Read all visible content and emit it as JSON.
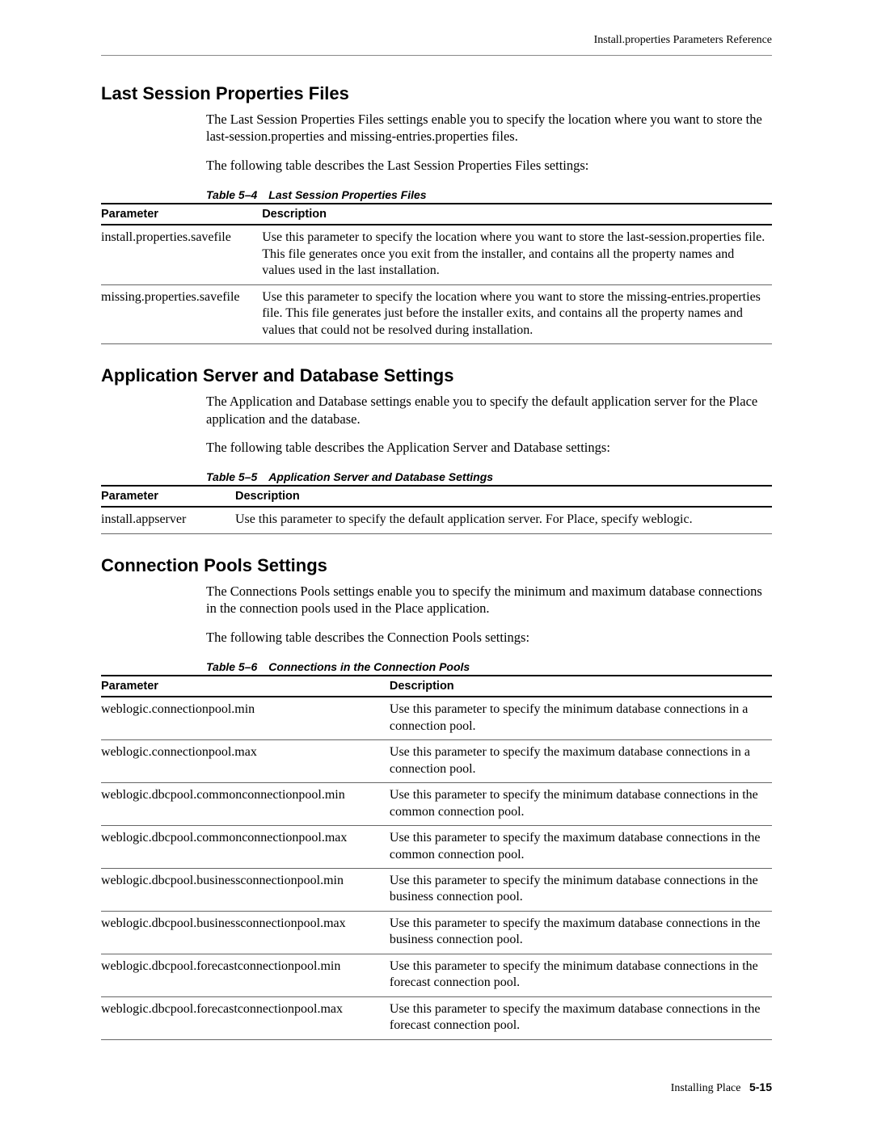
{
  "header": {
    "right_text": "Install.properties Parameters Reference"
  },
  "sections": {
    "last_session": {
      "heading": "Last Session Properties Files",
      "para1": "The Last Session Properties Files settings enable you to specify the location where you want to store the last-session.properties and missing-entries.properties files.",
      "para2": "The following table describes the Last Session Properties Files settings:",
      "table_caption": "Table 5–4 Last Session Properties Files",
      "columns": {
        "param": "Parameter",
        "desc": "Description"
      },
      "rows": [
        {
          "param": "install.properties.savefile",
          "desc": "Use this parameter to specify the location where you want to store the last-session.properties file. This file generates once you exit from the installer, and contains all the property names and values used in the last installation."
        },
        {
          "param": "missing.properties.savefile",
          "desc": "Use this parameter to specify the location where you want to store the missing-entries.properties file. This file generates just before the installer exits, and contains all the property names and values that could not be resolved during installation."
        }
      ]
    },
    "app_server": {
      "heading": "Application Server and Database Settings",
      "para1": "The Application and Database settings enable you to specify the default application server for the Place application and the database.",
      "para2": "The following table describes the Application Server and Database settings:",
      "table_caption": "Table 5–5 Application Server and Database Settings",
      "columns": {
        "param": "Parameter",
        "desc": "Description"
      },
      "rows": [
        {
          "param": "install.appserver",
          "desc": "Use this parameter to specify the default application server. For Place, specify weblogic."
        }
      ]
    },
    "conn_pools": {
      "heading": "Connection Pools Settings",
      "para1": "The Connections Pools settings enable you to specify the minimum and maximum database connections in the connection pools used in the Place application.",
      "para2": "The following table describes the Connection Pools settings:",
      "table_caption": "Table 5–6 Connections in the Connection Pools",
      "columns": {
        "param": "Parameter",
        "desc": "Description"
      },
      "rows": [
        {
          "param": "weblogic.connectionpool.min",
          "desc": "Use this parameter to specify the minimum database connections in a connection pool."
        },
        {
          "param": "weblogic.connectionpool.max",
          "desc": "Use this parameter to specify the maximum database connections in a connection pool."
        },
        {
          "param": "weblogic.dbcpool.commonconnectionpool.min",
          "desc": "Use this parameter to specify the minimum database connections in the common connection pool."
        },
        {
          "param": "weblogic.dbcpool.commonconnectionpool.max",
          "desc": "Use this parameter to specify the maximum database connections in the common connection pool."
        },
        {
          "param": "weblogic.dbcpool.businessconnectionpool.min",
          "desc": "Use this parameter to specify the minimum database connections in the business connection pool."
        },
        {
          "param": "weblogic.dbcpool.businessconnectionpool.max",
          "desc": "Use this parameter to specify the maximum database connections in the business connection pool."
        },
        {
          "param": "weblogic.dbcpool.forecastconnectionpool.min",
          "desc": "Use this parameter to specify the minimum database connections in the forecast connection pool."
        },
        {
          "param": "weblogic.dbcpool.forecastconnectionpool.max",
          "desc": "Use this parameter to specify the maximum database connections in the forecast connection pool."
        }
      ]
    }
  },
  "footer": {
    "doc_title": "Installing Place",
    "page_number": "5-15"
  }
}
